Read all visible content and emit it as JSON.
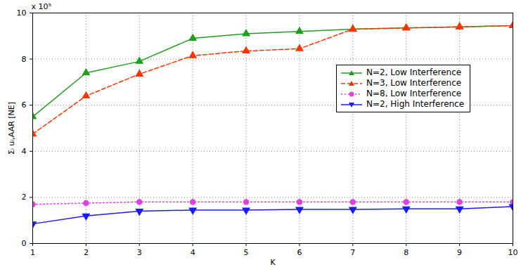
{
  "chart_data": {
    "type": "line",
    "y_label": "Σᵢ uᵢ,AAR [NE]",
    "x_label": "K",
    "annotations": [
      "x 10⁵"
    ],
    "x": [
      1,
      2,
      3,
      4,
      5,
      6,
      7,
      8,
      9,
      10
    ],
    "xlim": [
      1,
      10
    ],
    "xticks": [
      1,
      2,
      3,
      4,
      5,
      6,
      7,
      8,
      9,
      10
    ],
    "ylim": [
      0,
      10
    ],
    "yticks": [
      0,
      2,
      4,
      6,
      8,
      10
    ],
    "grid": true,
    "legend": "right",
    "series": [
      {
        "name": "N=2, Low Interference",
        "color": "#1f9e1f",
        "marker": "triangle",
        "line_style": "solid",
        "values": [
          5.5,
          7.4,
          7.9,
          8.9,
          9.1,
          9.2,
          9.3,
          9.35,
          9.4,
          9.45
        ]
      },
      {
        "name": "N=3, Low Interference",
        "color": "#ff3300",
        "marker": "triangle",
        "line_style": "dashed",
        "values": [
          4.75,
          6.4,
          7.35,
          8.15,
          8.35,
          8.45,
          9.3,
          9.35,
          9.4,
          9.45
        ]
      },
      {
        "name": "N=8, Low Interference",
        "color": "#e040e0",
        "marker": "circle",
        "line_style": "dotted",
        "values": [
          1.7,
          1.75,
          1.8,
          1.8,
          1.8,
          1.8,
          1.8,
          1.8,
          1.8,
          1.8
        ]
      },
      {
        "name": "N=2, High Interference",
        "color": "#1a1aff",
        "marker": "triangle-down",
        "line_style": "solid",
        "values": [
          0.85,
          1.2,
          1.4,
          1.45,
          1.45,
          1.48,
          1.48,
          1.5,
          1.5,
          1.6
        ]
      }
    ]
  }
}
